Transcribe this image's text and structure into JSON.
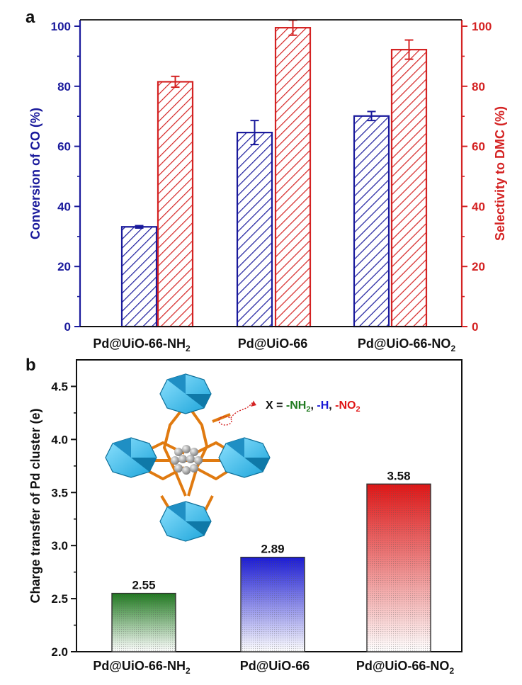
{
  "chart_data": [
    {
      "panel_label": "a",
      "type": "bar",
      "categories": [
        "Pd@UiO-66-NH",
        "Pd@UiO-66",
        "Pd@UiO-66-NO"
      ],
      "category_subscripts": [
        "2",
        "",
        "2"
      ],
      "series": [
        {
          "name": "Conversion of CO (%)",
          "axis": "left",
          "color": "#1a1a9c",
          "values": [
            33.2,
            64.6,
            70.1
          ],
          "errors": [
            0.4,
            4.0,
            1.5
          ]
        },
        {
          "name": "Selectivity to DMC (%)",
          "axis": "right",
          "color": "#d42323",
          "values": [
            81.5,
            99.5,
            92.2
          ],
          "errors": [
            1.8,
            2.5,
            3.2
          ]
        }
      ],
      "ylabel_left": "Conversion of CO (%)",
      "ylabel_right": "Selectivity to DMC (%)",
      "ylim_left": [
        0,
        100
      ],
      "ylim_right": [
        0,
        100
      ],
      "yticks": [
        0,
        20,
        40,
        60,
        80,
        100
      ],
      "ytick_labels": [
        "0",
        "20",
        "40",
        "60",
        "80",
        "100"
      ]
    },
    {
      "panel_label": "b",
      "type": "bar",
      "categories": [
        "Pd@UiO-66-NH",
        "Pd@UiO-66",
        "Pd@UiO-66-NO"
      ],
      "category_subscripts": [
        "2",
        "",
        "2"
      ],
      "values": [
        2.55,
        2.89,
        3.58
      ],
      "value_labels": [
        "2.55",
        "2.89",
        "3.58"
      ],
      "colors": [
        "#1f7a1f",
        "#1a1ad6",
        "#e01515"
      ],
      "ylabel": "Charge transfer of Pd cluster (e)",
      "ylim": [
        2.0,
        4.75
      ],
      "yticks": [
        2.0,
        2.5,
        3.0,
        3.5,
        4.0,
        4.5
      ],
      "ytick_labels": [
        "2.0",
        "2.5",
        "3.0",
        "3.5",
        "4.0",
        "4.5"
      ],
      "inset_legend": {
        "prefix": "X = ",
        "items": [
          {
            "text": "-NH",
            "sub": "2",
            "sep": ", ",
            "color": "#1f7a1f"
          },
          {
            "text": "-H",
            "sub": "",
            "sep": ", ",
            "color": "#1a1ad6"
          },
          {
            "text": "-NO",
            "sub": "2",
            "sep": "",
            "color": "#e01515"
          }
        ]
      }
    }
  ]
}
